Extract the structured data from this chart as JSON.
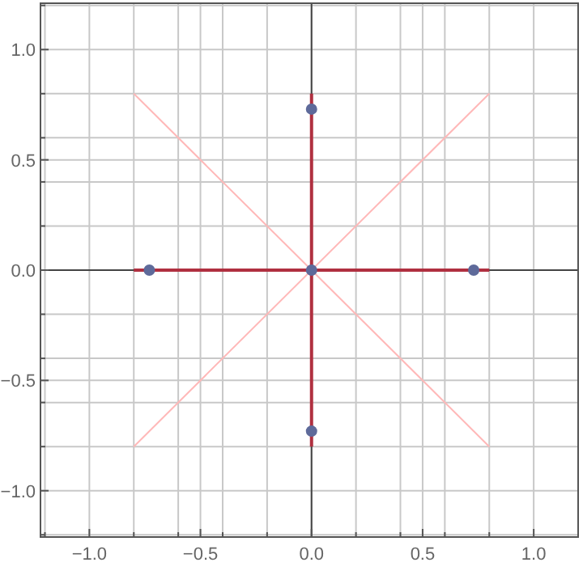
{
  "chart_data": {
    "type": "line",
    "xlim": [
      -1.22,
      1.2
    ],
    "ylim": [
      -1.21,
      1.21
    ],
    "xticks": [
      {
        "value": -1.2,
        "label": null
      },
      {
        "value": -1.0,
        "label": "−1.0"
      },
      {
        "value": -0.8,
        "label": null
      },
      {
        "value": -0.6,
        "label": null
      },
      {
        "value": -0.5,
        "label": "−0.5"
      },
      {
        "value": -0.4,
        "label": null
      },
      {
        "value": -0.2,
        "label": null
      },
      {
        "value": 0,
        "label": "0.0"
      },
      {
        "value": 0.2,
        "label": null
      },
      {
        "value": 0.4,
        "label": null
      },
      {
        "value": 0.5,
        "label": "0.5"
      },
      {
        "value": 0.6,
        "label": null
      },
      {
        "value": 0.8,
        "label": null
      },
      {
        "value": 1.0,
        "label": "1.0"
      }
    ],
    "yticks": [
      {
        "value": -1.2,
        "label": null
      },
      {
        "value": -1.0,
        "label": "−1.0"
      },
      {
        "value": -0.8,
        "label": null
      },
      {
        "value": -0.6,
        "label": null
      },
      {
        "value": -0.5,
        "label": "−0.5"
      },
      {
        "value": -0.4,
        "label": null
      },
      {
        "value": -0.2,
        "label": null
      },
      {
        "value": 0,
        "label": "0.0"
      },
      {
        "value": 0.2,
        "label": null
      },
      {
        "value": 0.4,
        "label": null
      },
      {
        "value": 0.5,
        "label": "0.5"
      },
      {
        "value": 0.6,
        "label": null
      },
      {
        "value": 0.8,
        "label": null
      },
      {
        "value": 1.0,
        "label": "1.0"
      },
      {
        "value": 1.2,
        "label": null
      }
    ],
    "grid": true,
    "series": [
      {
        "color": "#ffb8b8",
        "x": [
          -0.8,
          0.8
        ],
        "values": [
          0.8,
          -0.8
        ]
      },
      {
        "color": "#ffb8b8",
        "x": [
          -0.8,
          0.8
        ],
        "values": [
          -0.8,
          0.8
        ]
      },
      {
        "color": "#b03040",
        "x": [
          -0.8,
          0.8
        ],
        "values": [
          0,
          0
        ]
      },
      {
        "color": "#b03040",
        "x": [
          0,
          0
        ],
        "values": [
          -0.8,
          0.8
        ]
      },
      {
        "type": "scatter",
        "color": "#5e6a9a",
        "marker": "circle",
        "x": [
          -0.73,
          0,
          0.73,
          0,
          0
        ],
        "values": [
          0,
          0,
          0,
          0.73,
          -0.73
        ]
      }
    ]
  }
}
